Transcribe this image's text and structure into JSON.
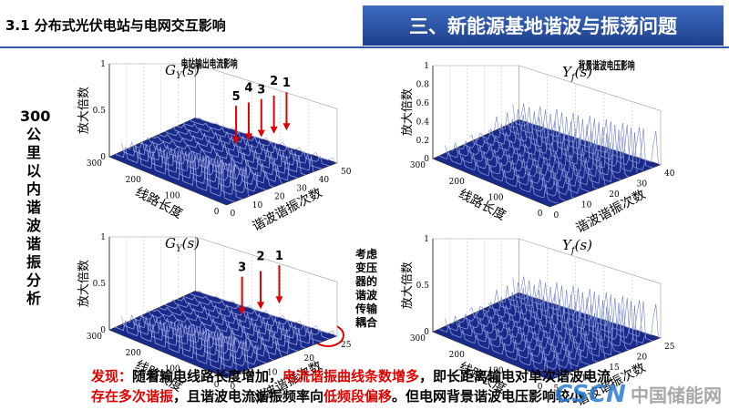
{
  "header": {
    "section": "3.1 分布式光伏电站与电网交互影响",
    "banner": "三、新能源基地谐波与振荡问题"
  },
  "side_label": "300公里以内谐波谐振分析",
  "transformer_note": "考虑变压器的谐波传输耦合",
  "plots": [
    {
      "symbol": "G",
      "subscript": "Y",
      "arg": "(s)",
      "note": "电站输出电流影响",
      "y_label": "放大倍数",
      "x_label": "线路长度",
      "z_label": "谐波谐振次数",
      "markers": [
        "5",
        "4",
        "3",
        "2",
        "1"
      ],
      "y_ticks": [
        "1",
        "0.5",
        "0"
      ],
      "x_ticks": [
        "300",
        "200",
        "100",
        "0"
      ],
      "z_ticks": [
        "0",
        "10",
        "20",
        "30",
        "40",
        "50"
      ]
    },
    {
      "symbol": "Y",
      "subscript": "f",
      "arg": "(s)",
      "note": "背景谐波电压影响",
      "y_label": "放大倍数",
      "x_label": "线路长度",
      "z_label": "谐波谐振次数",
      "markers": [],
      "y_ticks": [
        "1",
        "0.8",
        "0.6",
        "0.4",
        "0.2",
        "0"
      ],
      "x_ticks": [
        "300",
        "200",
        "100",
        "0"
      ],
      "z_ticks": [
        "0",
        "10",
        "20",
        "30",
        "40"
      ]
    },
    {
      "symbol": "G",
      "subscript": "Y",
      "arg": "(s)",
      "note": "",
      "y_label": "放大倍数",
      "x_label": "线路长度",
      "z_label": "谐波谐振次数",
      "markers": [
        "3",
        "2",
        "1"
      ],
      "y_ticks": [
        "1",
        "0.5",
        "0"
      ],
      "x_ticks": [
        "300",
        "200",
        "100",
        "0"
      ],
      "z_ticks": [
        "0",
        "10",
        "20",
        "25"
      ]
    },
    {
      "symbol": "Y",
      "subscript": "f",
      "arg": "(s)",
      "note": "",
      "y_label": "放大倍数",
      "x_label": "线路长度",
      "z_label": "谐波谐振次数",
      "markers": [],
      "y_ticks": [
        "1",
        "0.5",
        "0"
      ],
      "x_ticks": [
        "300",
        "200",
        "100",
        "0"
      ],
      "z_ticks": [
        "5",
        "10",
        "15",
        "20",
        "25"
      ]
    }
  ],
  "footer": {
    "lines": [
      [
        {
          "text": "发现：",
          "color": "#e00000"
        },
        {
          "text": "随着输电线路长度增加，",
          "color": "#000000"
        },
        {
          "text": "电流谐振曲线条数增多",
          "color": "#e00000"
        },
        {
          "text": "，即长距离输电对单次谐波电流",
          "color": "#000000"
        }
      ],
      [
        {
          "text": "存在多次谐振",
          "color": "#e00000"
        },
        {
          "text": "，且谐波电流谐振频率向",
          "color": "#000000"
        },
        {
          "text": "低频段偏移",
          "color": "#e00000"
        },
        {
          "text": "。但电网背景谐波电压影响较小",
          "color": "#000000"
        }
      ]
    ]
  },
  "watermark": {
    "brand": "CSCN",
    "site": "中国储能网"
  }
}
